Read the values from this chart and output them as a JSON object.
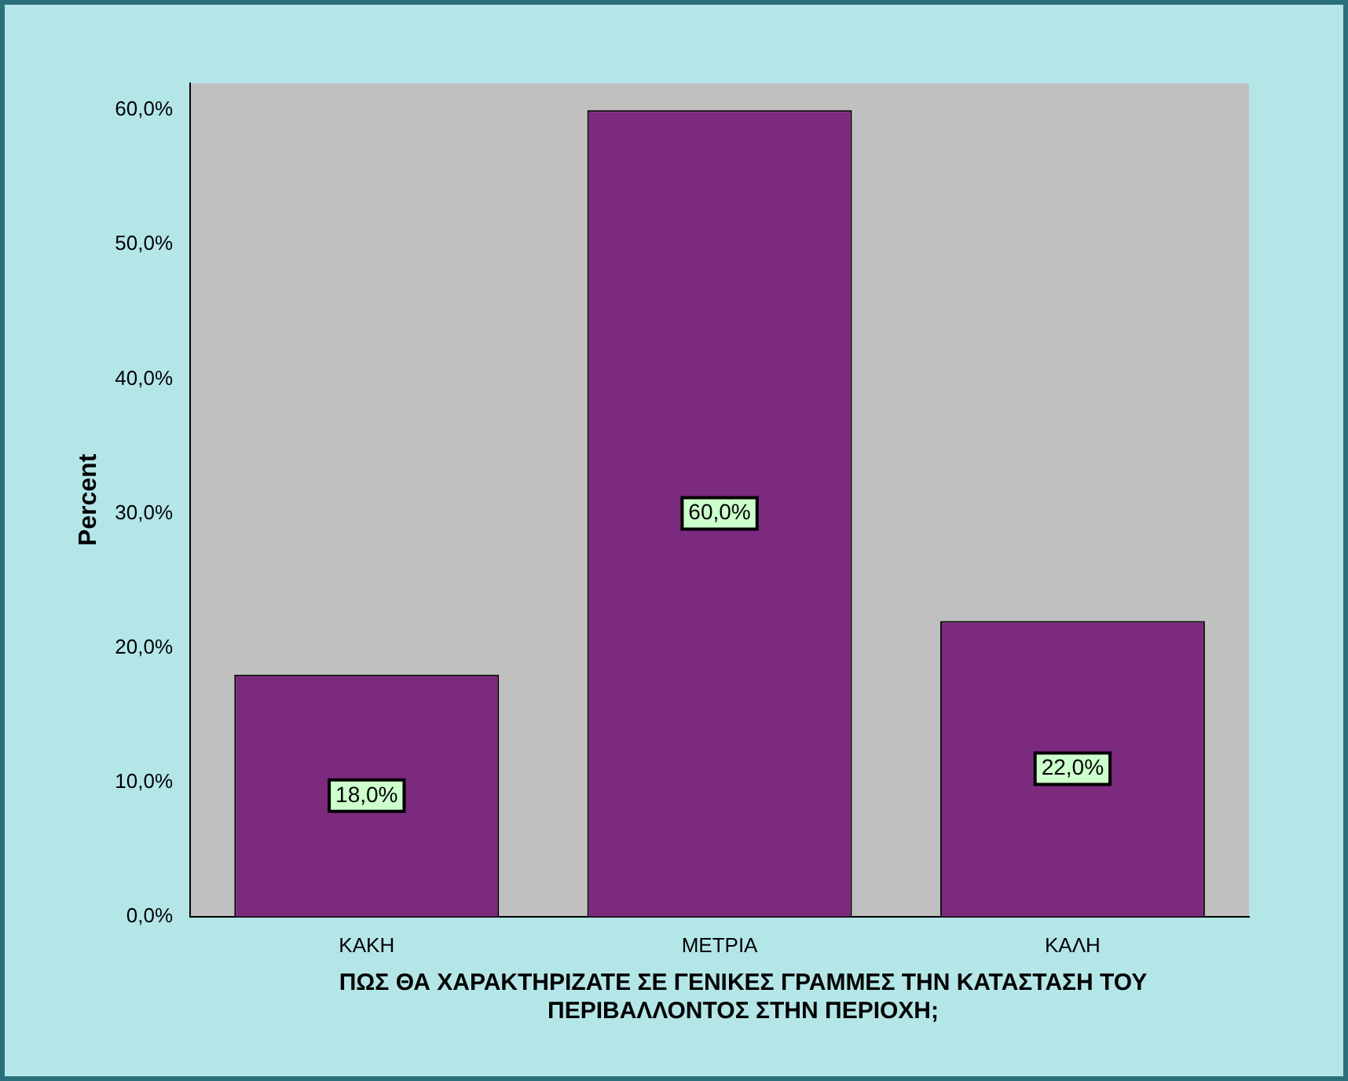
{
  "chart_data": {
    "type": "bar",
    "xlabel": "ΠΩΣ ΘΑ ΧΑΡΑΚΤΗΡΙΖΑΤΕ ΣΕ ΓΕΝΙΚΕΣ ΓΡΑΜΜΕΣ ΤΗΝ ΚΑΤΑΣΤΑΣΗ ΤΟΥ ΠΕΡΙΒΑΛΛΟΝΤΟΣ ΣΤΗΝ ΠΕΡΙΟΧΗ;",
    "ylabel": "Percent",
    "categories": [
      "ΚΑΚΗ",
      "ΜΕΤΡΙΑ",
      "ΚΑΛΗ"
    ],
    "values": [
      18,
      60,
      22
    ],
    "value_labels": [
      "18,0%",
      "60,0%",
      "22,0%"
    ],
    "color": "#7b2a7e",
    "ylim": [
      0,
      62
    ],
    "yticks": [
      {
        "value": 0,
        "label": "0,0%"
      },
      {
        "value": 10,
        "label": "10,0%"
      },
      {
        "value": 20,
        "label": "20,0%"
      },
      {
        "value": 30,
        "label": "30,0%"
      },
      {
        "value": 40,
        "label": "40,0%"
      },
      {
        "value": 50,
        "label": "50,0%"
      },
      {
        "value": 60,
        "label": "60,0%"
      }
    ]
  }
}
